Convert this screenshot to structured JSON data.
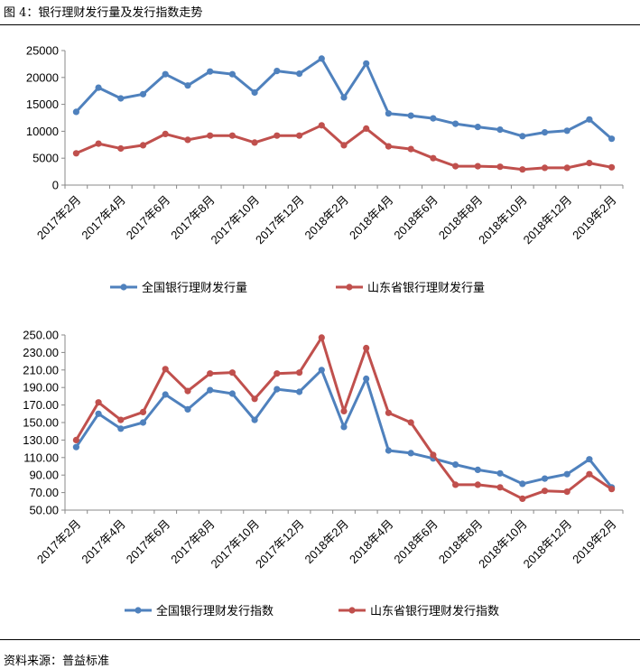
{
  "figure_title": "图 4：银行理财发行量及发行指数走势",
  "source_note": "资料来源：普益标准",
  "colors": {
    "blue": "#4f81bd",
    "red": "#c0504d"
  },
  "chart_data": [
    {
      "type": "line",
      "title": "",
      "xlabel": "",
      "ylabel": "",
      "ylim": [
        0,
        25000
      ],
      "yticks": [
        "0",
        "5000",
        "10000",
        "15000",
        "20000",
        "25000"
      ],
      "x": [
        "2017年2月",
        "2017年3月",
        "2017年4月",
        "2017年5月",
        "2017年6月",
        "2017年7月",
        "2017年8月",
        "2017年9月",
        "2017年10月",
        "2017年11月",
        "2017年12月",
        "2018年1月",
        "2018年2月",
        "2018年3月",
        "2018年4月",
        "2018年5月",
        "2018年6月",
        "2018年7月",
        "2018年8月",
        "2018年9月",
        "2018年10月",
        "2018年11月",
        "2018年12月",
        "2019年1月",
        "2019年2月"
      ],
      "xtick_labels": [
        "2017年2月",
        "2017年4月",
        "2017年6月",
        "2017年8月",
        "2017年10月",
        "2017年12月",
        "2018年2月",
        "2018年4月",
        "2018年6月",
        "2018年8月",
        "2018年10月",
        "2018年12月",
        "2019年2月"
      ],
      "legend_position": "bottom",
      "series": [
        {
          "name": "全国银行理财发行量",
          "color": "#4f81bd",
          "values": [
            13600,
            18100,
            16100,
            16900,
            20600,
            18500,
            21100,
            20600,
            17200,
            21200,
            20700,
            23500,
            16300,
            22600,
            13300,
            12900,
            12400,
            11400,
            10800,
            10300,
            9100,
            9800,
            10100,
            12200,
            8600
          ]
        },
        {
          "name": "山东省银行理财发行量",
          "color": "#c0504d",
          "values": [
            5900,
            7700,
            6800,
            7400,
            9500,
            8400,
            9200,
            9200,
            7900,
            9200,
            9200,
            11100,
            7400,
            10500,
            7200,
            6700,
            5000,
            3500,
            3500,
            3400,
            2900,
            3200,
            3200,
            4100,
            3300
          ]
        }
      ]
    },
    {
      "type": "line",
      "title": "",
      "xlabel": "",
      "ylabel": "",
      "ylim": [
        50,
        250
      ],
      "yticks": [
        "50.00",
        "70.00",
        "90.00",
        "110.00",
        "130.00",
        "150.00",
        "170.00",
        "190.00",
        "210.00",
        "230.00",
        "250.00"
      ],
      "x": [
        "2017年2月",
        "2017年3月",
        "2017年4月",
        "2017年5月",
        "2017年6月",
        "2017年7月",
        "2017年8月",
        "2017年9月",
        "2017年10月",
        "2017年11月",
        "2017年12月",
        "2018年1月",
        "2018年2月",
        "2018年3月",
        "2018年4月",
        "2018年5月",
        "2018年6月",
        "2018年7月",
        "2018年8月",
        "2018年9月",
        "2018年10月",
        "2018年11月",
        "2018年12月",
        "2019年1月",
        "2019年2月"
      ],
      "xtick_labels": [
        "2017年2月",
        "2017年4月",
        "2017年6月",
        "2017年8月",
        "2017年10月",
        "2017年12月",
        "2018年2月",
        "2018年4月",
        "2018年6月",
        "2018年8月",
        "2018年10月",
        "2018年12月",
        "2019年2月"
      ],
      "legend_position": "bottom",
      "series": [
        {
          "name": "全国银行理财发行指数",
          "color": "#4f81bd",
          "values": [
            122,
            160,
            143,
            150,
            182,
            165,
            187,
            183,
            153,
            188,
            185,
            210,
            145,
            200,
            118,
            115,
            109,
            102,
            96,
            92,
            80,
            86,
            91,
            108,
            76
          ]
        },
        {
          "name": "山东省银行理财发行指数",
          "color": "#c0504d",
          "values": [
            130,
            173,
            153,
            162,
            211,
            186,
            206,
            207,
            177,
            206,
            207,
            247,
            163,
            235,
            161,
            150,
            113,
            79,
            79,
            76,
            63,
            72,
            71,
            91,
            74
          ]
        }
      ]
    }
  ]
}
